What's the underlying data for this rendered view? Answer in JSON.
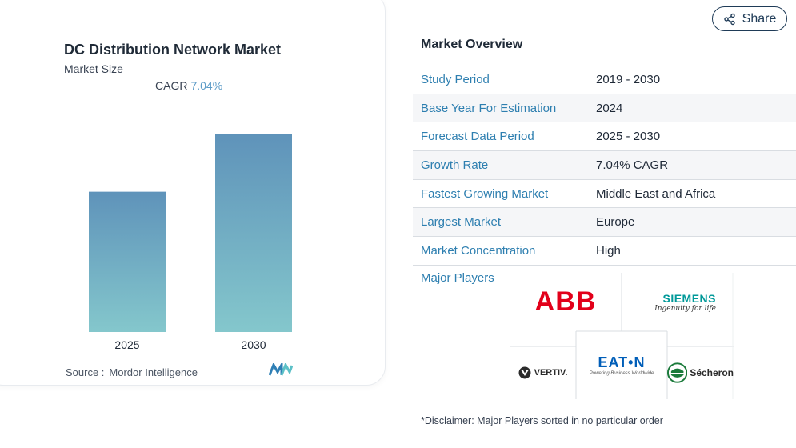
{
  "chart": {
    "title": "DC Distribution Network Market",
    "subtitle": "Market Size",
    "cagr_label": "CAGR",
    "cagr_value": "7.04%",
    "source_label": "Source :",
    "source_value": "Mordor Intelligence"
  },
  "chart_data": {
    "type": "bar",
    "categories": [
      "2025",
      "2030"
    ],
    "values": [
      0.71,
      1.0
    ],
    "title": "DC Distribution Network Market",
    "xlabel": "",
    "ylabel": ""
  },
  "share": {
    "label": "Share",
    "icon": "share-icon"
  },
  "overview": {
    "title": "Market Overview",
    "rows": [
      {
        "label": "Study Period",
        "value": "2019 - 2030"
      },
      {
        "label": "Base Year For Estimation",
        "value": "2024"
      },
      {
        "label": "Forecast Data Period",
        "value": "2025 - 2030"
      },
      {
        "label": "Growth Rate",
        "value": "7.04% CAGR"
      },
      {
        "label": "Fastest Growing Market",
        "value": "Middle East and Africa"
      },
      {
        "label": "Largest Market",
        "value": "Europe"
      },
      {
        "label": "Market Concentration",
        "value": "High"
      }
    ],
    "players_label": "Major Players"
  },
  "logos": {
    "abb": "ABB",
    "siemens": "SIEMENS",
    "siemens_tagline": "Ingenuity for life",
    "vertiv": "VERTIV.",
    "eaton": "EAT•N",
    "eaton_tagline": "Powering Business Worldwide",
    "secheron": "Sécheron"
  },
  "disclaimer": "*Disclaimer: Major Players sorted in no particular order",
  "colors": {
    "accent": "#2e7fb0",
    "bar_top": "#5f93ba",
    "bar_bottom": "#84c7cc",
    "abb_red": "#e2001a",
    "siemens_teal": "#009999",
    "eaton_blue": "#005eb8",
    "secheron_green": "#1a7a3a"
  }
}
